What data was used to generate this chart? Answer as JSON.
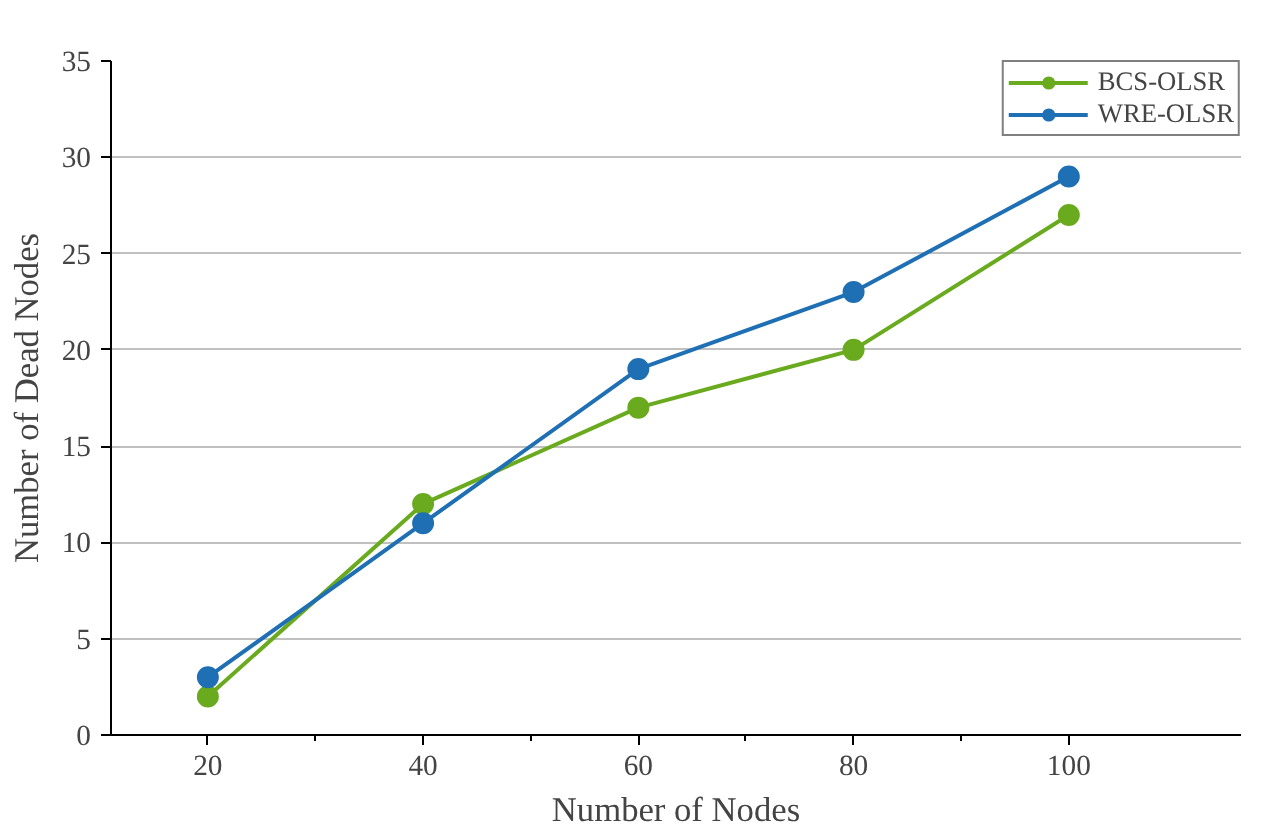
{
  "chart_data": {
    "type": "line",
    "xlabel": "Number of Nodes",
    "ylabel": "Number of Dead Nodes",
    "x": [
      20,
      40,
      60,
      80,
      100
    ],
    "series": [
      {
        "name": "BCS-OLSR",
        "color": "#6aaa1e",
        "values": [
          2,
          12,
          17,
          20,
          27
        ]
      },
      {
        "name": "WRE-OLSR",
        "color": "#1f6fb4",
        "values": [
          3,
          11,
          19,
          23,
          29
        ]
      }
    ],
    "xlim": [
      11,
      116
    ],
    "xticks": [
      20,
      {
        "value": 30,
        "label": null
      },
      40,
      {
        "value": 50,
        "label": null
      },
      60,
      {
        "value": 70,
        "label": null
      },
      80,
      {
        "value": 90,
        "label": null
      },
      100
    ],
    "ylim": [
      0,
      35
    ],
    "yticks": [
      0,
      5,
      10,
      15,
      20,
      25,
      30,
      35
    ],
    "grid": "y",
    "legend": "top right",
    "marker": "circle",
    "line_style": "solid"
  }
}
